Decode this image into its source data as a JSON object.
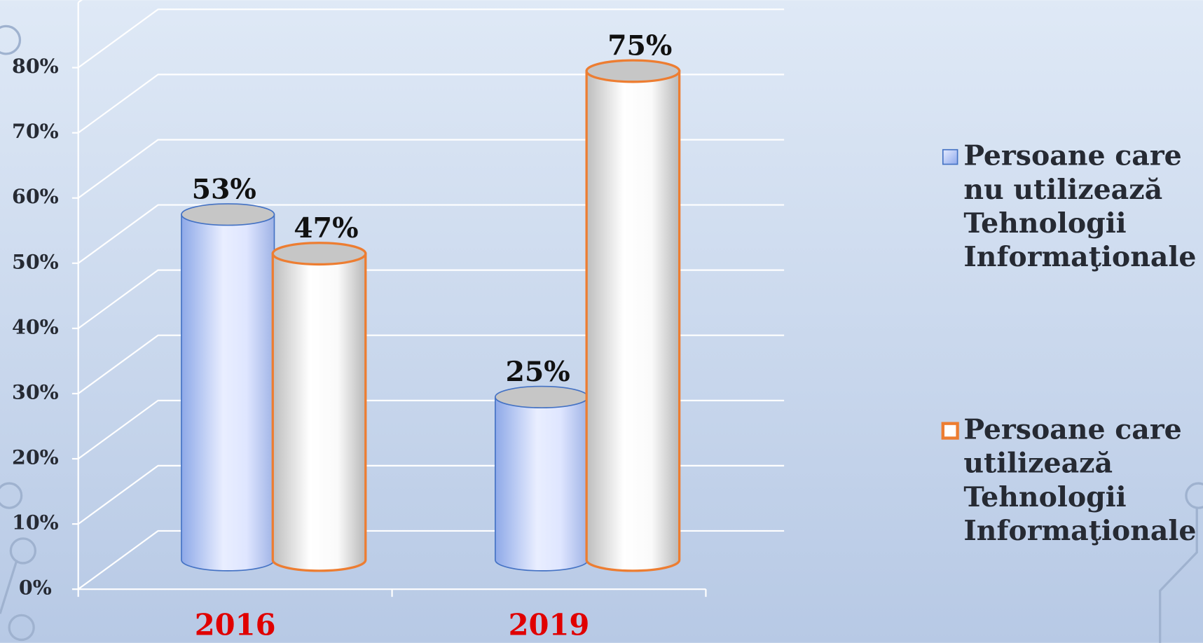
{
  "chart_data": {
    "type": "bar",
    "categories": [
      "2016",
      "2019"
    ],
    "series": [
      {
        "name": "Persoane care nu utilizează Tehnologii Informaţionale",
        "color": "#4472c4",
        "values": [
          53,
          25
        ],
        "value_labels": [
          "53%",
          "25%"
        ]
      },
      {
        "name": "Persoane care utilizează Tehnologii Informaţionale",
        "color": "#ed7d31",
        "values": [
          47,
          75
        ],
        "value_labels": [
          "47%",
          "75%"
        ]
      }
    ],
    "ylim": [
      0,
      90
    ],
    "yticks": [
      {
        "value": 0,
        "label": "0%"
      },
      {
        "value": 10,
        "label": "10%"
      },
      {
        "value": 20,
        "label": "20%"
      },
      {
        "value": 30,
        "label": "30%"
      },
      {
        "value": 40,
        "label": "40%"
      },
      {
        "value": 50,
        "label": "50%"
      },
      {
        "value": 60,
        "label": "60%"
      },
      {
        "value": 70,
        "label": "70%"
      },
      {
        "value": 80,
        "label": "80%"
      }
    ],
    "grid": true,
    "legend": "right"
  }
}
